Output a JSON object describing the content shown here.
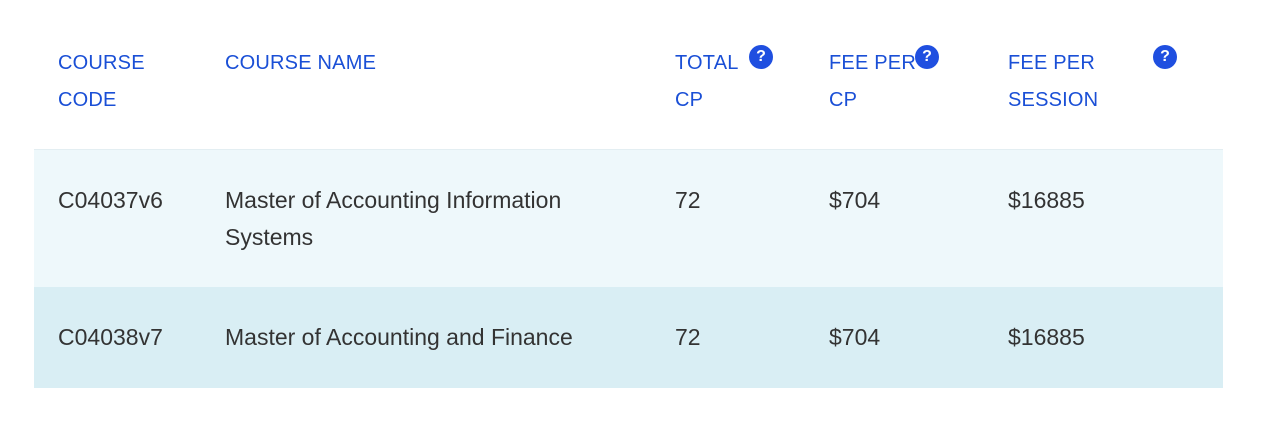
{
  "table": {
    "headers": [
      {
        "label": "COURSE\nCODE",
        "line1": "COURSE",
        "line2": "CODE",
        "has_help": false
      },
      {
        "label": "COURSE NAME",
        "line1": "COURSE NAME",
        "line2": "",
        "has_help": false
      },
      {
        "label": "TOTAL\nCP",
        "line1": "TOTAL",
        "line2": "CP",
        "has_help": true
      },
      {
        "label": "FEE PER\nCP",
        "line1": "FEE PER",
        "line2": "CP",
        "has_help": true
      },
      {
        "label": "FEE PER\nSESSION",
        "line1": "FEE PER",
        "line2": "SESSION",
        "has_help": true
      }
    ],
    "help_icon_glyph": "?",
    "rows": [
      {
        "code": "C04037v6",
        "name_line1": "Master of Accounting Information",
        "name_line2": "Systems",
        "total_cp": "72",
        "fee_per_cp": "$704",
        "fee_per_session": "$16885"
      },
      {
        "code": "C04038v7",
        "name_line1": "Master of Accounting and Finance",
        "name_line2": "",
        "total_cp": "72",
        "fee_per_cp": "$704",
        "fee_per_session": "$16885"
      }
    ]
  },
  "colors": {
    "header_text": "#1a4fd6",
    "help_icon_bg": "#1f4fe0",
    "row_odd_bg": "#eef8fb",
    "row_even_bg": "#d9eef4",
    "body_text": "#333333"
  }
}
